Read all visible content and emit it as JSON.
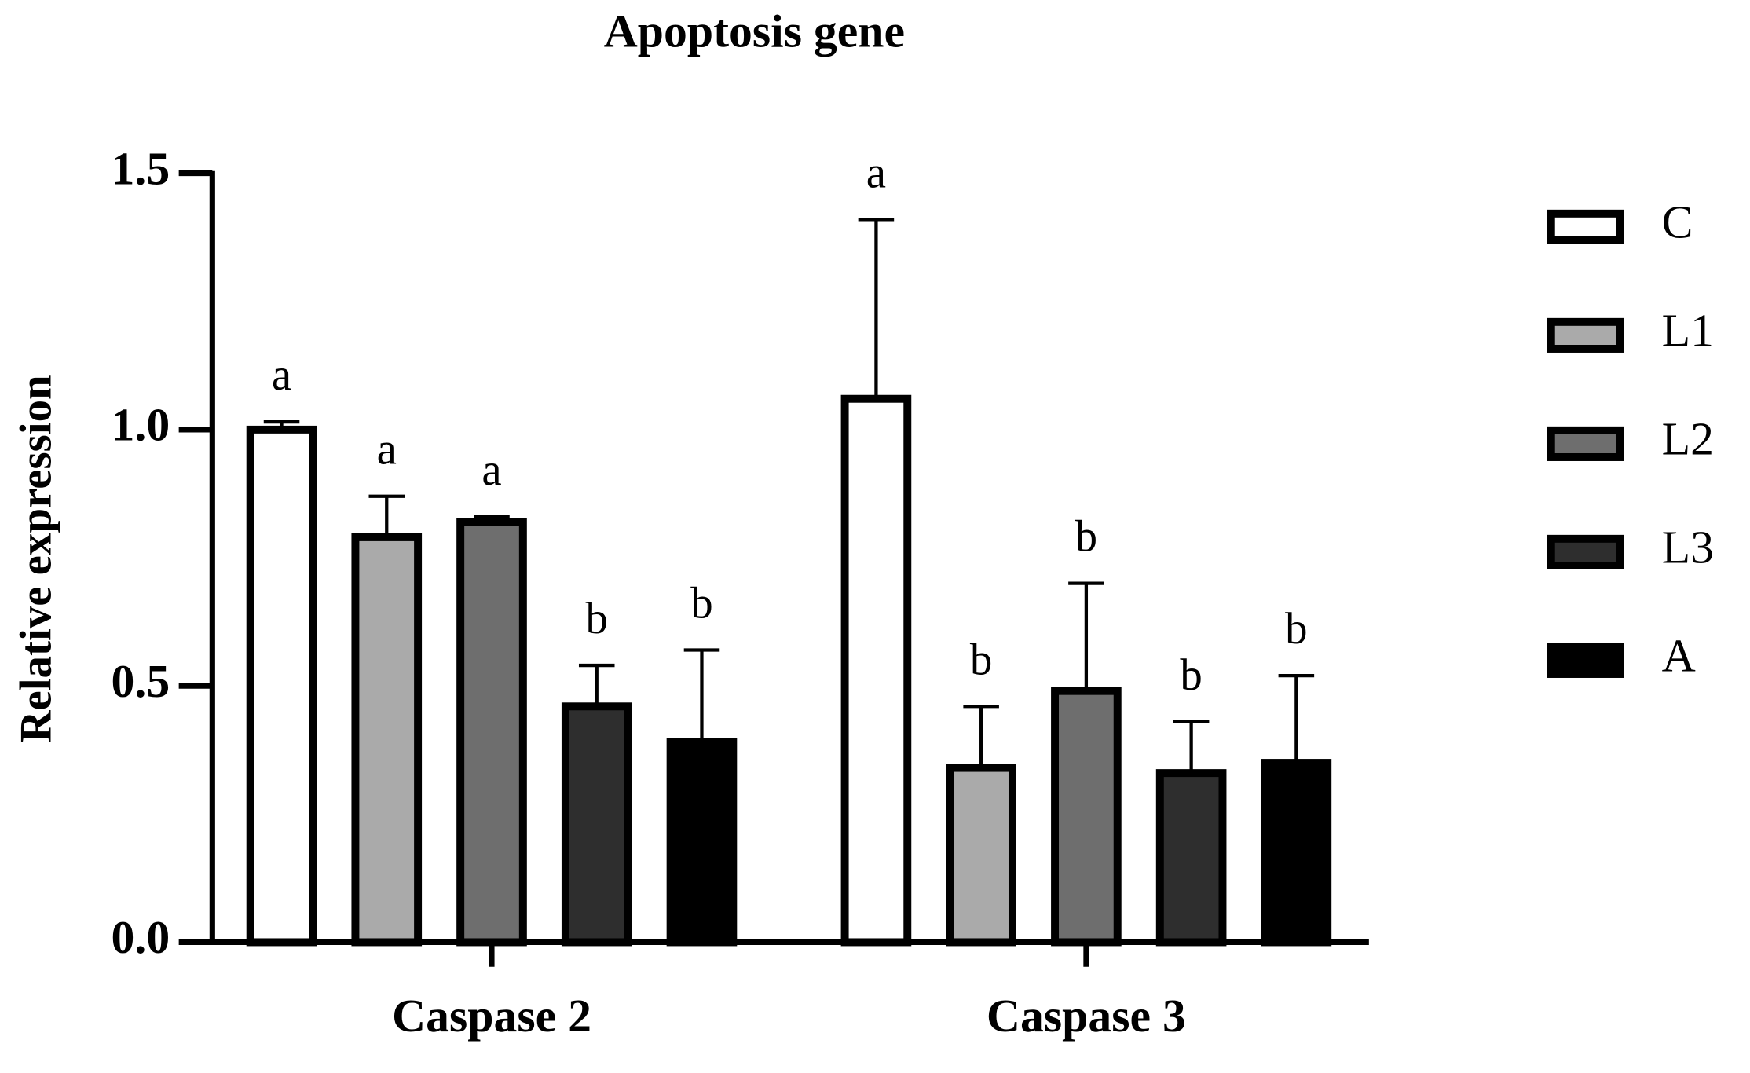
{
  "chart_data": {
    "type": "bar",
    "title": "Apoptosis gene",
    "y_label": "Relative expression",
    "categories": [
      "Caspase 2",
      "Caspase 3"
    ],
    "series": [
      {
        "name": "C",
        "color": "#ffffff",
        "values": [
          1.0,
          1.06
        ],
        "errors": [
          0.015,
          0.35
        ],
        "letters": [
          "a",
          "a"
        ]
      },
      {
        "name": "L1",
        "color": "#aaaaaa",
        "values": [
          0.79,
          0.34
        ],
        "errors": [
          0.08,
          0.12
        ],
        "letters": [
          "a",
          "b"
        ]
      },
      {
        "name": "L2",
        "color": "#6e6e6e",
        "values": [
          0.82,
          0.49
        ],
        "errors": [
          0.01,
          0.21
        ],
        "letters": [
          "a",
          "b"
        ]
      },
      {
        "name": "L3",
        "color": "#2e2e2e",
        "values": [
          0.46,
          0.33
        ],
        "errors": [
          0.08,
          0.1
        ],
        "letters": [
          "b",
          "b"
        ]
      },
      {
        "name": "A",
        "color": "#000000",
        "values": [
          0.39,
          0.35
        ],
        "errors": [
          0.18,
          0.17
        ],
        "letters": [
          "b",
          "b"
        ]
      }
    ],
    "ylim": [
      0,
      1.5
    ],
    "yticks": [
      {
        "value": 0,
        "label": "0.0"
      },
      {
        "value": 0.5,
        "label": "0.5"
      },
      {
        "value": 1,
        "label": "1.0"
      },
      {
        "value": 1.5,
        "label": "1.5"
      }
    ],
    "legend": "right"
  }
}
